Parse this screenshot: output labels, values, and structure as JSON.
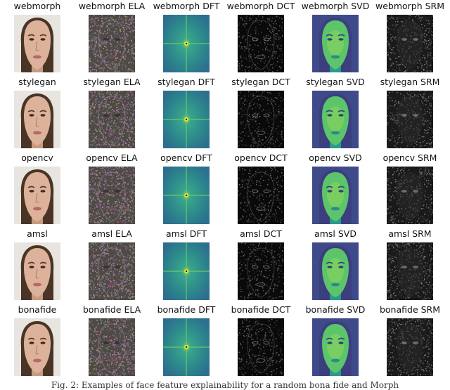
{
  "figure": {
    "rows": [
      {
        "source": "webmorph",
        "labels": [
          "webmorph",
          "webmorph ELA",
          "webmorph DFT",
          "webmorph DCT",
          "webmorph SVD",
          "webmorph SRM"
        ]
      },
      {
        "source": "stylegan",
        "labels": [
          "stylegan",
          "stylegan ELA",
          "stylegan DFT",
          "stylegan DCT",
          "stylegan SVD",
          "stylegan SRM"
        ]
      },
      {
        "source": "opencv",
        "labels": [
          "opencv",
          "opencv ELA",
          "opencv DFT",
          "opencv DCT",
          "opencv SVD",
          "opencv SRM"
        ]
      },
      {
        "source": "amsl",
        "labels": [
          "amsl",
          "amsl ELA",
          "amsl DFT",
          "amsl DCT",
          "amsl SVD",
          "amsl SRM"
        ]
      },
      {
        "source": "bonafide",
        "labels": [
          "bonafide",
          "bonafide ELA",
          "bonafide DFT",
          "bonafide DCT",
          "bonafide SVD",
          "bonafide SRM"
        ]
      }
    ],
    "panel_types": [
      "photo",
      "ela",
      "dft",
      "dct",
      "svd",
      "srm"
    ],
    "caption": "Fig. 2: Examples of face feature explainability for a random bona fide and Morph"
  }
}
